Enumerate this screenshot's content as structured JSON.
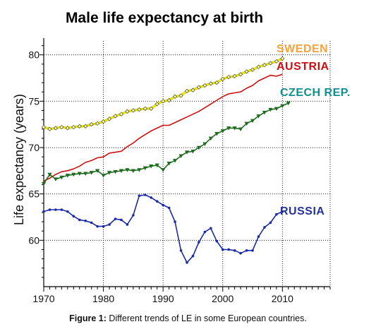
{
  "chart_data": {
    "type": "line",
    "title": "Male life expectancy at birth",
    "ylabel": "Life expectancy (years)",
    "xlabel": "",
    "xlim": [
      1970,
      2018
    ],
    "ylim": [
      55,
      81.5
    ],
    "x_ticks": [
      "1970",
      "1980",
      "1990",
      "2000",
      "2010"
    ],
    "y_ticks": [
      "60",
      "65",
      "70",
      "75",
      "80"
    ],
    "grid": "dotted",
    "series": [
      {
        "name": "SWEDEN",
        "color": "#f4f000",
        "label_color": "#f7a23a",
        "marker": "diamond",
        "points": [
          [
            1970,
            72.2
          ],
          [
            1971,
            72.0
          ],
          [
            1972,
            72.1
          ],
          [
            1973,
            72.2
          ],
          [
            1974,
            72.1
          ],
          [
            1975,
            72.2
          ],
          [
            1976,
            72.3
          ],
          [
            1977,
            72.3
          ],
          [
            1978,
            72.5
          ],
          [
            1979,
            72.6
          ],
          [
            1980,
            72.8
          ],
          [
            1981,
            73.1
          ],
          [
            1982,
            73.4
          ],
          [
            1983,
            73.6
          ],
          [
            1984,
            73.9
          ],
          [
            1985,
            74.0
          ],
          [
            1986,
            74.1
          ],
          [
            1987,
            74.2
          ],
          [
            1988,
            74.2
          ],
          [
            1989,
            74.7
          ],
          [
            1990,
            75.0
          ],
          [
            1991,
            75.1
          ],
          [
            1992,
            75.5
          ],
          [
            1993,
            75.6
          ],
          [
            1994,
            76.1
          ],
          [
            1995,
            76.2
          ],
          [
            1996,
            76.5
          ],
          [
            1997,
            76.7
          ],
          [
            1998,
            76.9
          ],
          [
            1999,
            77.0
          ],
          [
            2000,
            77.4
          ],
          [
            2001,
            77.6
          ],
          [
            2002,
            77.7
          ],
          [
            2003,
            77.9
          ],
          [
            2004,
            78.2
          ],
          [
            2005,
            78.4
          ],
          [
            2006,
            78.7
          ],
          [
            2007,
            78.9
          ],
          [
            2008,
            79.1
          ],
          [
            2009,
            79.3
          ],
          [
            2010,
            79.6
          ]
        ]
      },
      {
        "name": "AUSTRIA",
        "color": "#cc1111",
        "label_color": "#d01010",
        "marker": "none",
        "points": [
          [
            1970,
            66.4
          ],
          [
            1971,
            66.7
          ],
          [
            1972,
            67.1
          ],
          [
            1973,
            67.4
          ],
          [
            1974,
            67.5
          ],
          [
            1975,
            67.7
          ],
          [
            1976,
            68.0
          ],
          [
            1977,
            68.4
          ],
          [
            1978,
            68.6
          ],
          [
            1979,
            68.9
          ],
          [
            1980,
            69.0
          ],
          [
            1981,
            69.4
          ],
          [
            1982,
            69.5
          ],
          [
            1983,
            69.6
          ],
          [
            1984,
            70.1
          ],
          [
            1985,
            70.5
          ],
          [
            1986,
            71.0
          ],
          [
            1987,
            71.4
          ],
          [
            1988,
            71.8
          ],
          [
            1989,
            72.1
          ],
          [
            1990,
            72.4
          ],
          [
            1991,
            72.4
          ],
          [
            1992,
            72.7
          ],
          [
            1993,
            73.0
          ],
          [
            1994,
            73.3
          ],
          [
            1995,
            73.6
          ],
          [
            1996,
            73.9
          ],
          [
            1997,
            74.3
          ],
          [
            1998,
            74.7
          ],
          [
            1999,
            75.1
          ],
          [
            2000,
            75.5
          ],
          [
            2001,
            75.8
          ],
          [
            2002,
            75.9
          ],
          [
            2003,
            76.0
          ],
          [
            2004,
            76.4
          ],
          [
            2005,
            76.7
          ],
          [
            2006,
            77.2
          ],
          [
            2007,
            77.5
          ],
          [
            2008,
            77.8
          ],
          [
            2009,
            77.7
          ],
          [
            2010,
            77.9
          ]
        ]
      },
      {
        "name": "CZECH REP.",
        "color": "#1f6b1f",
        "label_color": "#0f8f8f",
        "marker": "triangle",
        "points": [
          [
            1970,
            66.1
          ],
          [
            1971,
            67.1
          ],
          [
            1972,
            66.6
          ],
          [
            1973,
            66.8
          ],
          [
            1974,
            67.0
          ],
          [
            1975,
            67.1
          ],
          [
            1976,
            67.2
          ],
          [
            1977,
            67.2
          ],
          [
            1978,
            67.3
          ],
          [
            1979,
            67.5
          ],
          [
            1980,
            67.0
          ],
          [
            1981,
            67.3
          ],
          [
            1982,
            67.4
          ],
          [
            1983,
            67.5
          ],
          [
            1984,
            67.6
          ],
          [
            1985,
            67.5
          ],
          [
            1986,
            67.6
          ],
          [
            1987,
            67.8
          ],
          [
            1988,
            68.0
          ],
          [
            1989,
            68.1
          ],
          [
            1990,
            67.6
          ],
          [
            1991,
            68.3
          ],
          [
            1992,
            68.6
          ],
          [
            1993,
            69.1
          ],
          [
            1994,
            69.5
          ],
          [
            1995,
            69.6
          ],
          [
            1996,
            70.0
          ],
          [
            1997,
            70.4
          ],
          [
            1998,
            71.0
          ],
          [
            1999,
            71.5
          ],
          [
            2000,
            71.8
          ],
          [
            2001,
            72.1
          ],
          [
            2002,
            72.1
          ],
          [
            2003,
            72.0
          ],
          [
            2004,
            72.6
          ],
          [
            2005,
            72.9
          ],
          [
            2006,
            73.4
          ],
          [
            2007,
            73.8
          ],
          [
            2008,
            74.1
          ],
          [
            2009,
            74.2
          ],
          [
            2010,
            74.5
          ],
          [
            2011,
            74.8
          ]
        ]
      },
      {
        "name": "RUSSIA",
        "color": "#1a2aa8",
        "label_color": "#233399",
        "marker": "circle",
        "points": [
          [
            1970,
            63.1
          ],
          [
            1971,
            63.3
          ],
          [
            1972,
            63.3
          ],
          [
            1973,
            63.3
          ],
          [
            1974,
            63.1
          ],
          [
            1975,
            62.6
          ],
          [
            1976,
            62.2
          ],
          [
            1977,
            62.1
          ],
          [
            1978,
            61.9
          ],
          [
            1979,
            61.5
          ],
          [
            1980,
            61.5
          ],
          [
            1981,
            61.7
          ],
          [
            1982,
            62.3
          ],
          [
            1983,
            62.2
          ],
          [
            1984,
            61.7
          ],
          [
            1985,
            62.7
          ],
          [
            1986,
            64.8
          ],
          [
            1987,
            64.9
          ],
          [
            1988,
            64.6
          ],
          [
            1989,
            64.2
          ],
          [
            1990,
            63.8
          ],
          [
            1991,
            63.5
          ],
          [
            1992,
            62.0
          ],
          [
            1993,
            58.9
          ],
          [
            1994,
            57.6
          ],
          [
            1995,
            58.3
          ],
          [
            1996,
            59.8
          ],
          [
            1997,
            60.9
          ],
          [
            1998,
            61.3
          ],
          [
            1999,
            59.9
          ],
          [
            2000,
            59.0
          ],
          [
            2001,
            59.0
          ],
          [
            2002,
            58.9
          ],
          [
            2003,
            58.6
          ],
          [
            2004,
            58.9
          ],
          [
            2005,
            58.9
          ],
          [
            2006,
            60.4
          ],
          [
            2007,
            61.4
          ],
          [
            2008,
            61.9
          ],
          [
            2009,
            62.8
          ],
          [
            2010,
            63.1
          ]
        ]
      }
    ]
  },
  "caption": {
    "label": "Figure 1:",
    "text": " Different trends of LE in some European countries."
  }
}
